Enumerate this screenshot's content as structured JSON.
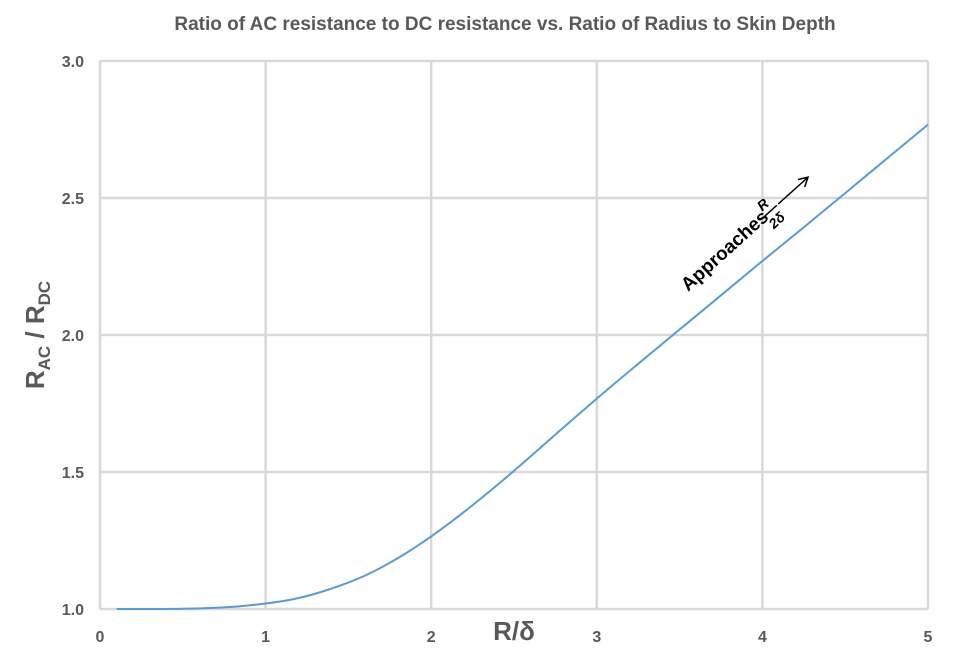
{
  "chart_data": {
    "type": "line",
    "title": "Ratio of AC resistance to DC resistance vs. Ratio of Radius to Skin Depth",
    "xlabel": "R/δ",
    "ylabel": {
      "main": "R",
      "sub1": "AC",
      "sep": " / R",
      "sub2": "DC"
    },
    "xlim": [
      0,
      5
    ],
    "ylim": [
      1.0,
      3.0
    ],
    "x_ticks": [
      "0",
      "1",
      "2",
      "3",
      "4",
      "5"
    ],
    "y_ticks": [
      "1.0",
      "1.5",
      "2.0",
      "2.5",
      "3.0"
    ],
    "grid": true,
    "series": [
      {
        "color": "#5b9bd5",
        "x": [
          0.1,
          0.25,
          0.5,
          0.75,
          1.0,
          1.2,
          1.4,
          1.6,
          1.8,
          2.0,
          2.2,
          2.4,
          2.6,
          2.8,
          3.0,
          3.25,
          3.5,
          3.75,
          4.0,
          4.25,
          4.5,
          4.75,
          5.0
        ],
        "y": [
          1.0,
          1.0,
          1.001,
          1.006,
          1.02,
          1.04,
          1.075,
          1.122,
          1.186,
          1.265,
          1.355,
          1.453,
          1.557,
          1.663,
          1.768,
          1.895,
          2.02,
          2.145,
          2.27,
          2.393,
          2.518,
          2.643,
          2.768
        ]
      }
    ],
    "annotation": {
      "text": "Approaches",
      "numerator": "R",
      "denominator": "2δ"
    }
  }
}
